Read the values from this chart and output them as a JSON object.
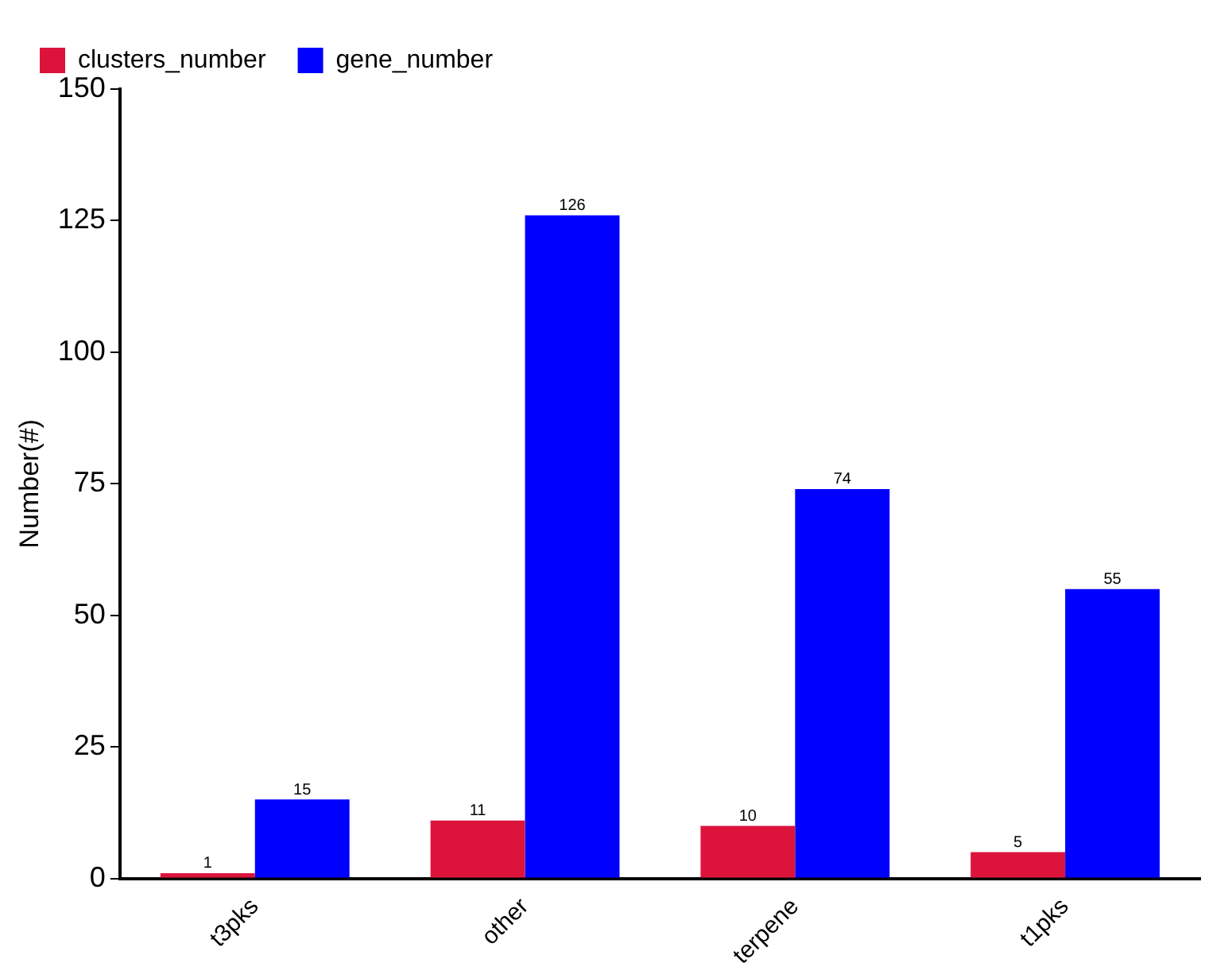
{
  "chart_data": {
    "type": "bar",
    "ylabel": "Number(#)",
    "categories": [
      "t3pks",
      "other",
      "terpene",
      "t1pks"
    ],
    "series": [
      {
        "name": "clusters_number",
        "color": "#dc143c",
        "values": [
          1,
          11,
          10,
          5
        ]
      },
      {
        "name": "gene_number",
        "color": "#0000ff",
        "values": [
          15,
          126,
          74,
          55
        ]
      }
    ],
    "ylim": [
      0,
      150
    ],
    "yticks": [
      0,
      25,
      50,
      75,
      100,
      125,
      150
    ],
    "grid": false,
    "legend": "top left",
    "data_labels": true
  }
}
